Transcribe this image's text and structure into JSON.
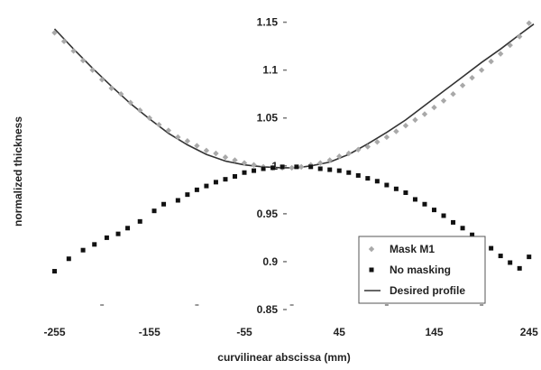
{
  "chart_data": {
    "type": "scatter",
    "title": "",
    "xlabel": "curvilinear abscissa (mm)",
    "ylabel": "normalized thickness",
    "x_ticks": [
      -255,
      -155,
      -55,
      45,
      145,
      245
    ],
    "x_tick_labels": [
      "-255",
      "-155",
      "-55",
      "45",
      "145",
      "245"
    ],
    "y_ticks": [
      0.85,
      0.9,
      0.95,
      1.0,
      1.05,
      1.1,
      1.15
    ],
    "y_tick_labels": [
      "0.85",
      "0.9",
      "0.95",
      "1",
      "1.05",
      "1.1",
      "1.15"
    ],
    "xlim": [
      -265,
      250
    ],
    "ylim": [
      0.85,
      1.16
    ],
    "grid": false,
    "legend_position": "bottom-right",
    "series": [
      {
        "name": "Mask M1",
        "marker": "diamond",
        "color": "#a9a9a9",
        "x": [
          -255,
          -245,
          -235,
          -225,
          -215,
          -205,
          -195,
          -185,
          -175,
          -165,
          -155,
          -145,
          -135,
          -125,
          -115,
          -105,
          -95,
          -85,
          -75,
          -65,
          -55,
          -45,
          -35,
          -25,
          -15,
          -5,
          5,
          15,
          25,
          35,
          45,
          55,
          65,
          75,
          85,
          95,
          105,
          115,
          125,
          135,
          145,
          155,
          165,
          175,
          185,
          195,
          205,
          215,
          225,
          235,
          245
        ],
        "values": [
          1.139,
          1.13,
          1.12,
          1.11,
          1.1,
          1.09,
          1.081,
          1.075,
          1.066,
          1.058,
          1.05,
          1.043,
          1.037,
          1.03,
          1.026,
          1.021,
          1.016,
          1.013,
          1.009,
          1.006,
          1.003,
          1.001,
          0.999,
          0.998,
          0.998,
          0.998,
          0.999,
          1.001,
          1.003,
          1.006,
          1.01,
          1.013,
          1.017,
          1.02,
          1.025,
          1.03,
          1.036,
          1.042,
          1.048,
          1.054,
          1.061,
          1.068,
          1.075,
          1.084,
          1.092,
          1.1,
          1.109,
          1.117,
          1.126,
          1.135,
          1.149
        ]
      },
      {
        "name": "No masking",
        "marker": "square",
        "color": "#111111",
        "x": [
          -255,
          -240,
          -225,
          -213,
          -200,
          -188,
          -178,
          -165,
          -150,
          -140,
          -125,
          -115,
          -105,
          -95,
          -85,
          -75,
          -65,
          -55,
          -45,
          -35,
          -25,
          -15,
          0,
          15,
          25,
          35,
          45,
          55,
          65,
          75,
          85,
          95,
          105,
          115,
          125,
          135,
          145,
          155,
          165,
          175,
          185,
          195,
          205,
          215,
          225,
          235,
          245
        ],
        "values": [
          0.89,
          0.903,
          0.912,
          0.918,
          0.925,
          0.929,
          0.935,
          0.942,
          0.953,
          0.96,
          0.964,
          0.97,
          0.975,
          0.979,
          0.983,
          0.986,
          0.989,
          0.993,
          0.995,
          0.997,
          0.998,
          0.999,
          0.999,
          0.999,
          0.997,
          0.996,
          0.995,
          0.993,
          0.99,
          0.987,
          0.984,
          0.98,
          0.976,
          0.972,
          0.965,
          0.96,
          0.954,
          0.948,
          0.941,
          0.935,
          0.928,
          0.921,
          0.914,
          0.906,
          0.899,
          0.893,
          0.905
        ]
      },
      {
        "name": "Desired profile",
        "marker": "line",
        "color": "#333333",
        "x": [
          -255,
          -235,
          -215,
          -195,
          -175,
          -155,
          -135,
          -115,
          -95,
          -75,
          -55,
          -35,
          -15,
          0,
          15,
          35,
          55,
          75,
          95,
          115,
          135,
          155,
          175,
          195,
          215,
          235,
          250
        ],
        "values": [
          1.143,
          1.122,
          1.102,
          1.083,
          1.065,
          1.049,
          1.034,
          1.022,
          1.012,
          1.005,
          1.001,
          0.999,
          0.998,
          0.998,
          1.0,
          1.004,
          1.012,
          1.023,
          1.035,
          1.048,
          1.063,
          1.078,
          1.093,
          1.108,
          1.122,
          1.137,
          1.148
        ]
      }
    ]
  }
}
